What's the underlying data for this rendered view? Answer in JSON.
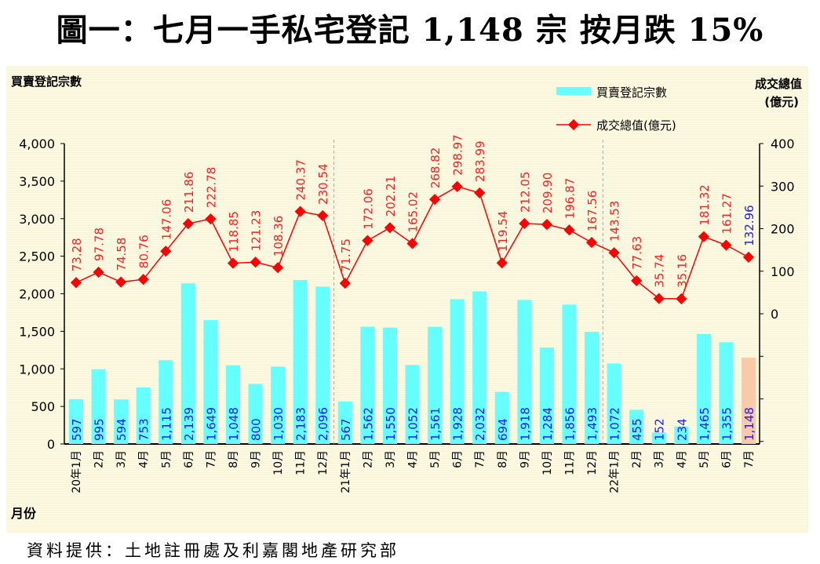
{
  "title": "圖一：七月一手私宅登記 1,148 宗  按月跌 15%",
  "source": "資料提供：土地註冊處及利嘉閣地產研究部",
  "chart_data": {
    "type": "bar+line",
    "left_axis_title": "買賣登記宗數",
    "right_axis_title_line1": "成交總值",
    "right_axis_title_line2": "(億元)",
    "xlabel": "月份",
    "left_ylim": [
      0,
      4000
    ],
    "left_ticks": [
      "0",
      "500",
      "1,000",
      "1,500",
      "2,000",
      "2,500",
      "3,000",
      "3,500",
      "4,000"
    ],
    "right_ylim": [
      0,
      400
    ],
    "right_ticks": [
      "0",
      "100",
      "200",
      "300",
      "400"
    ],
    "legend": [
      {
        "label": "買賣登記宗數",
        "type": "bar"
      },
      {
        "label": "成交總值(億元)",
        "type": "line"
      }
    ],
    "legend_position": "top-right",
    "categories": [
      "20年1月",
      "2月",
      "3月",
      "4月",
      "5月",
      "6月",
      "7月",
      "8月",
      "9月",
      "10月",
      "11月",
      "12月",
      "21年1月",
      "2月",
      "3月",
      "4月",
      "5月",
      "6月",
      "7月",
      "8月",
      "9月",
      "10月",
      "11月",
      "12月",
      "22年1月",
      "2月",
      "3月",
      "4月",
      "5月",
      "6月",
      "7月"
    ],
    "series": [
      {
        "name": "買賣登記宗數",
        "axis": "left",
        "type": "bar",
        "values": [
          597,
          995,
          594,
          753,
          1115,
          2139,
          1649,
          1048,
          800,
          1030,
          2183,
          2096,
          567,
          1562,
          1550,
          1052,
          1561,
          1928,
          2032,
          694,
          1918,
          1284,
          1856,
          1493,
          1072,
          455,
          152,
          234,
          1465,
          1355,
          1148
        ],
        "labels": [
          "597",
          "995",
          "594",
          "753",
          "1,115",
          "2,139",
          "1,649",
          "1,048",
          "800",
          "1,030",
          "2,183",
          "2,096",
          "567",
          "1,562",
          "1,550",
          "1,052",
          "1,561",
          "1,928",
          "2,032",
          "694",
          "1,918",
          "1,284",
          "1,856",
          "1,493",
          "1,072",
          "455",
          "152",
          "234",
          "1,465",
          "1,355",
          "1,148"
        ]
      },
      {
        "name": "成交總值(億元)",
        "axis": "right",
        "type": "line",
        "values": [
          73.28,
          97.78,
          74.58,
          80.76,
          147.06,
          211.86,
          222.78,
          118.85,
          121.23,
          108.36,
          240.37,
          230.54,
          71.75,
          172.06,
          202.21,
          165.02,
          268.82,
          298.97,
          283.99,
          119.54,
          212.05,
          209.9,
          196.87,
          167.56,
          143.53,
          77.63,
          35.74,
          35.16,
          181.32,
          161.27,
          132.96
        ],
        "labels": [
          "73.28",
          "97.78",
          "74.58",
          "80.76",
          "147.06",
          "211.86",
          "222.78",
          "118.85",
          "121.23",
          "108.36",
          "240.37",
          "230.54",
          "71.75",
          "172.06",
          "202.21",
          "165.02",
          "268.82",
          "298.97",
          "283.99",
          "119.54",
          "212.05",
          "209.90",
          "196.87",
          "167.56",
          "143.53",
          "77.63",
          "35.74",
          "35.16",
          "181.32",
          "161.27",
          "132.96"
        ]
      }
    ],
    "year_dividers_after": [
      11,
      23
    ],
    "colors": {
      "bar": "#66ffff",
      "bar_highlight": "#f9c9a9",
      "line": "#ff0000",
      "bar_label": "#1a1aff",
      "line_label": "#ff2020",
      "line_label_highlight": "#2020dd"
    }
  }
}
